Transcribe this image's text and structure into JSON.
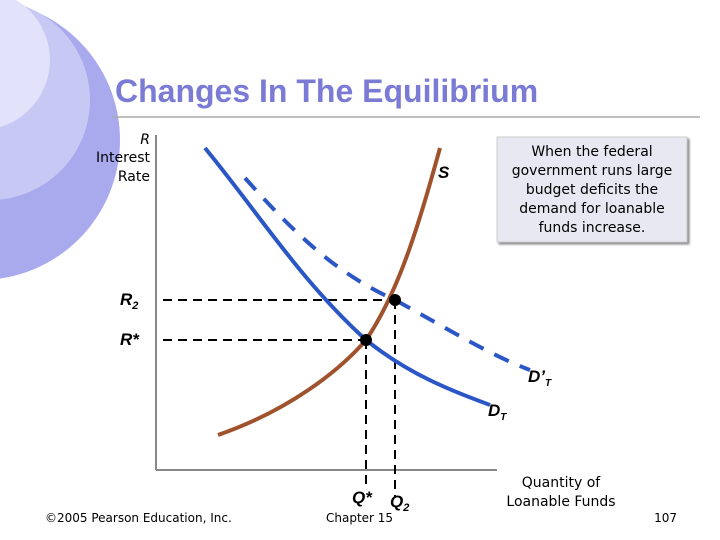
{
  "title": "Changes In The Equilibrium",
  "y_axis_label": [
    "R",
    "Interest",
    "Rate"
  ],
  "x_axis_label": [
    "Quantity of",
    "Loanable Funds"
  ],
  "supply_label": "S",
  "callout": [
    "When the federal",
    "government runs large",
    "budget deficits the",
    "demand for loanable",
    "funds increase."
  ],
  "r2_label": {
    "text": "R",
    "sub": "2"
  },
  "rstar_label": "R*",
  "new_demand_label": {
    "text": "D’",
    "sub": "T"
  },
  "demand_label": {
    "text": "D",
    "sub": "T"
  },
  "qstar_label": "Q*",
  "q2_label": {
    "text": "Q",
    "sub": "2"
  },
  "footer": {
    "copyright": "©2005 Pearson Education, Inc.",
    "chapter": "Chapter 15",
    "page": "107"
  }
}
